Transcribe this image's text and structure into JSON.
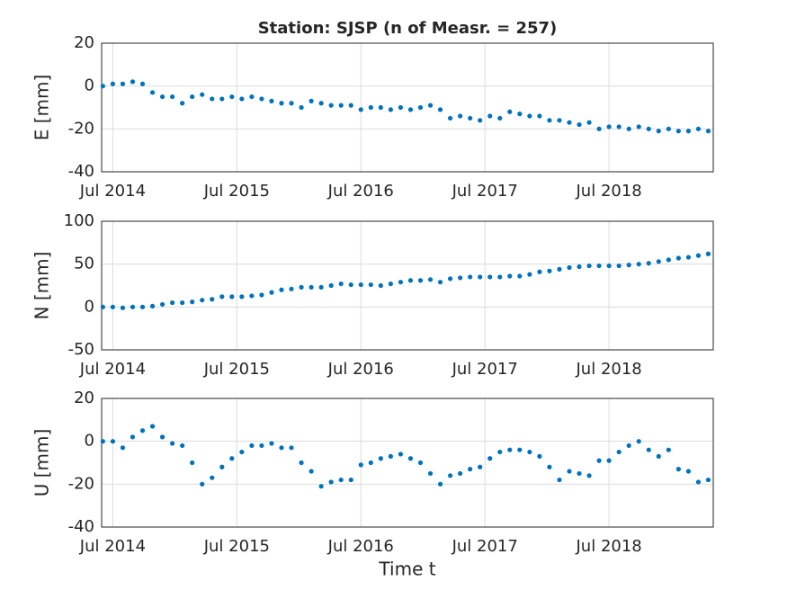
{
  "chart_data": [
    {
      "type": "scatter",
      "title": "Station: SJSP (n of Measr. = 257)",
      "ylabel": "E [mm]",
      "x": [
        2014.42,
        2014.5,
        2014.58,
        2014.66,
        2014.74,
        2014.82,
        2014.9,
        2014.98,
        2015.06,
        2015.14,
        2015.22,
        2015.3,
        2015.38,
        2015.46,
        2015.54,
        2015.62,
        2015.7,
        2015.78,
        2015.86,
        2015.94,
        2016.02,
        2016.1,
        2016.18,
        2016.26,
        2016.34,
        2016.42,
        2016.5,
        2016.58,
        2016.66,
        2016.74,
        2016.82,
        2016.9,
        2016.98,
        2017.06,
        2017.14,
        2017.22,
        2017.3,
        2017.38,
        2017.46,
        2017.54,
        2017.62,
        2017.7,
        2017.78,
        2017.86,
        2017.94,
        2018.02,
        2018.1,
        2018.18,
        2018.26,
        2018.34,
        2018.42,
        2018.5,
        2018.58,
        2018.66,
        2018.74,
        2018.82,
        2018.9,
        2018.98,
        2019.06,
        2019.14,
        2019.22,
        2019.3
      ],
      "values": [
        0,
        1,
        1,
        2,
        1,
        -3,
        -5,
        -5,
        -8,
        -5,
        -4,
        -6,
        -6,
        -5,
        -6,
        -5,
        -6,
        -7,
        -8,
        -8,
        -10,
        -7,
        -8,
        -9,
        -9,
        -9,
        -11,
        -10,
        -10,
        -11,
        -10,
        -11,
        -10,
        -9,
        -11,
        -15,
        -14,
        -15,
        -16,
        -14,
        -15,
        -12,
        -13,
        -14,
        -14,
        -16,
        -16,
        -17,
        -18,
        -17,
        -20,
        -19,
        -19,
        -20,
        -19,
        -20,
        -21,
        -20,
        -21,
        -21,
        -20,
        -21
      ],
      "color": "#0072bd",
      "xlim": [
        2014.41,
        2019.34
      ],
      "xticks": [
        {
          "value": 2014.5,
          "label": "Jul 2014"
        },
        {
          "value": 2015.5,
          "label": "Jul 2015"
        },
        {
          "value": 2016.5,
          "label": "Jul 2016"
        },
        {
          "value": 2017.5,
          "label": "Jul 2017"
        },
        {
          "value": 2018.5,
          "label": "Jul 2018"
        }
      ],
      "ylim": [
        -40,
        20
      ],
      "yticks": [
        -40,
        -20,
        0,
        20
      ],
      "grid": true
    },
    {
      "type": "scatter",
      "ylabel": "N [mm]",
      "x": [
        2014.42,
        2014.5,
        2014.58,
        2014.66,
        2014.74,
        2014.82,
        2014.9,
        2014.98,
        2015.06,
        2015.14,
        2015.22,
        2015.3,
        2015.38,
        2015.46,
        2015.54,
        2015.62,
        2015.7,
        2015.78,
        2015.86,
        2015.94,
        2016.02,
        2016.1,
        2016.18,
        2016.26,
        2016.34,
        2016.42,
        2016.5,
        2016.58,
        2016.66,
        2016.74,
        2016.82,
        2016.9,
        2016.98,
        2017.06,
        2017.14,
        2017.22,
        2017.3,
        2017.38,
        2017.46,
        2017.54,
        2017.62,
        2017.7,
        2017.78,
        2017.86,
        2017.94,
        2018.02,
        2018.1,
        2018.18,
        2018.26,
        2018.34,
        2018.42,
        2018.5,
        2018.58,
        2018.66,
        2018.74,
        2018.82,
        2018.9,
        2018.98,
        2019.06,
        2019.14,
        2019.22,
        2019.3
      ],
      "values": [
        0,
        0,
        -1,
        0,
        0,
        1,
        3,
        5,
        5,
        6,
        8,
        9,
        12,
        12,
        12,
        13,
        14,
        17,
        20,
        21,
        23,
        23,
        23,
        25,
        27,
        26,
        26,
        26,
        25,
        27,
        29,
        31,
        31,
        32,
        29,
        33,
        34,
        35,
        35,
        35,
        35,
        36,
        36,
        38,
        41,
        42,
        44,
        46,
        47,
        48,
        48,
        48,
        48,
        49,
        50,
        51,
        53,
        55,
        57,
        58,
        60,
        62
      ],
      "color": "#0072bd",
      "xlim": [
        2014.41,
        2019.34
      ],
      "xticks": [
        {
          "value": 2014.5,
          "label": "Jul 2014"
        },
        {
          "value": 2015.5,
          "label": "Jul 2015"
        },
        {
          "value": 2016.5,
          "label": "Jul 2016"
        },
        {
          "value": 2017.5,
          "label": "Jul 2017"
        },
        {
          "value": 2018.5,
          "label": "Jul 2018"
        }
      ],
      "ylim": [
        -50,
        100
      ],
      "yticks": [
        -50,
        0,
        50,
        100
      ],
      "grid": true
    },
    {
      "type": "scatter",
      "ylabel": "U [mm]",
      "xlabel": "Time t",
      "x": [
        2014.42,
        2014.5,
        2014.58,
        2014.66,
        2014.74,
        2014.82,
        2014.9,
        2014.98,
        2015.06,
        2015.14,
        2015.22,
        2015.3,
        2015.38,
        2015.46,
        2015.54,
        2015.62,
        2015.7,
        2015.78,
        2015.86,
        2015.94,
        2016.02,
        2016.1,
        2016.18,
        2016.26,
        2016.34,
        2016.42,
        2016.5,
        2016.58,
        2016.66,
        2016.74,
        2016.82,
        2016.9,
        2016.98,
        2017.06,
        2017.14,
        2017.22,
        2017.3,
        2017.38,
        2017.46,
        2017.54,
        2017.62,
        2017.7,
        2017.78,
        2017.86,
        2017.94,
        2018.02,
        2018.1,
        2018.18,
        2018.26,
        2018.34,
        2018.42,
        2018.5,
        2018.58,
        2018.66,
        2018.74,
        2018.82,
        2018.9,
        2018.98,
        2019.06,
        2019.14,
        2019.22,
        2019.3
      ],
      "values": [
        0,
        0,
        -3,
        2,
        5,
        7,
        2,
        -1,
        -2,
        -10,
        -20,
        -17,
        -12,
        -8,
        -5,
        -2,
        -2,
        -1,
        -3,
        -3,
        -10,
        -14,
        -21,
        -19,
        -18,
        -18,
        -11,
        -10,
        -8,
        -7,
        -6,
        -8,
        -10,
        -15,
        -20,
        -16,
        -15,
        -13,
        -12,
        -8,
        -5,
        -4,
        -4,
        -5,
        -7,
        -12,
        -18,
        -14,
        -15,
        -16,
        -9,
        -9,
        -5,
        -2,
        0,
        -4,
        -7,
        -4,
        -13,
        -14,
        -19,
        -18
      ],
      "color": "#0072bd",
      "xlim": [
        2014.41,
        2019.34
      ],
      "xticks": [
        {
          "value": 2014.5,
          "label": "Jul 2014"
        },
        {
          "value": 2015.5,
          "label": "Jul 2015"
        },
        {
          "value": 2016.5,
          "label": "Jul 2016"
        },
        {
          "value": 2017.5,
          "label": "Jul 2017"
        },
        {
          "value": 2018.5,
          "label": "Jul 2018"
        }
      ],
      "ylim": [
        -40,
        20
      ],
      "yticks": [
        -40,
        -20,
        0,
        20
      ],
      "grid": true
    }
  ]
}
